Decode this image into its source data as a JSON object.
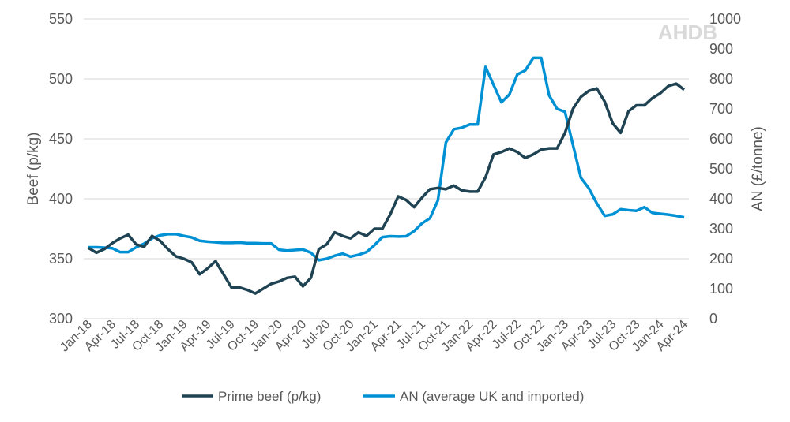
{
  "logo_text": "AHDB",
  "chart_data": {
    "type": "line",
    "title": "",
    "ylabel": "Beef (p/kg)",
    "y2label": "AN (£/tonne)",
    "ylim": [
      300,
      550
    ],
    "y2lim": [
      0,
      1000
    ],
    "yticks": [
      300,
      350,
      400,
      450,
      500,
      550
    ],
    "y2ticks": [
      0,
      100,
      200,
      300,
      400,
      500,
      600,
      700,
      800,
      900,
      1000
    ],
    "grid": true,
    "legend": "bottom",
    "x_start": "Jan-18",
    "x_end": "Apr-24",
    "xtick_labels": [
      "Jan-18",
      "Apr-18",
      "Jul-18",
      "Oct-18",
      "Jan-19",
      "Apr-19",
      "Jul-19",
      "Oct-19",
      "Jan-20",
      "Apr-20",
      "Jul-20",
      "Oct-20",
      "Jan-21",
      "Apr-21",
      "Jul-21",
      "Oct-21",
      "Jan-22",
      "Apr-22",
      "Jul-22",
      "Oct-22",
      "Jan-23",
      "Apr-23",
      "Jul-23",
      "Oct-23",
      "Jan-24",
      "Apr-24"
    ],
    "series": [
      {
        "name": "Prime beef (p/kg)",
        "axis": "left",
        "color": "#1f4352",
        "values": [
          359,
          355,
          358,
          363,
          367,
          370,
          362,
          360,
          369,
          365,
          358,
          352,
          350,
          347,
          337,
          342,
          348,
          337,
          326,
          326,
          324,
          321,
          325,
          329,
          331,
          334,
          335,
          327,
          334,
          358,
          362,
          372,
          369,
          367,
          372,
          369,
          375,
          375,
          387,
          402,
          399,
          393,
          401,
          408,
          409,
          408,
          411,
          407,
          406,
          406,
          418,
          437,
          439,
          442,
          439,
          434,
          437,
          441,
          442,
          442,
          455,
          475,
          485,
          490,
          492,
          481,
          463,
          455,
          473,
          478,
          478,
          484,
          488,
          494,
          496,
          491
        ]
      },
      {
        "name": "AN (average UK and imported)",
        "axis": "right",
        "color": "#0091d5",
        "values": [
          238,
          238,
          237,
          235,
          222,
          222,
          238,
          250,
          268,
          278,
          282,
          282,
          276,
          271,
          260,
          257,
          255,
          253,
          253,
          254,
          252,
          252,
          251,
          251,
          230,
          227,
          229,
          231,
          220,
          195,
          200,
          210,
          217,
          207,
          213,
          222,
          245,
          272,
          275,
          274,
          275,
          292,
          318,
          335,
          395,
          588,
          632,
          637,
          648,
          648,
          840,
          780,
          722,
          748,
          815,
          828,
          870,
          870,
          745,
          700,
          690,
          580,
          470,
          435,
          385,
          343,
          348,
          365,
          362,
          360,
          372,
          353,
          350,
          347,
          343,
          338
        ]
      }
    ]
  }
}
